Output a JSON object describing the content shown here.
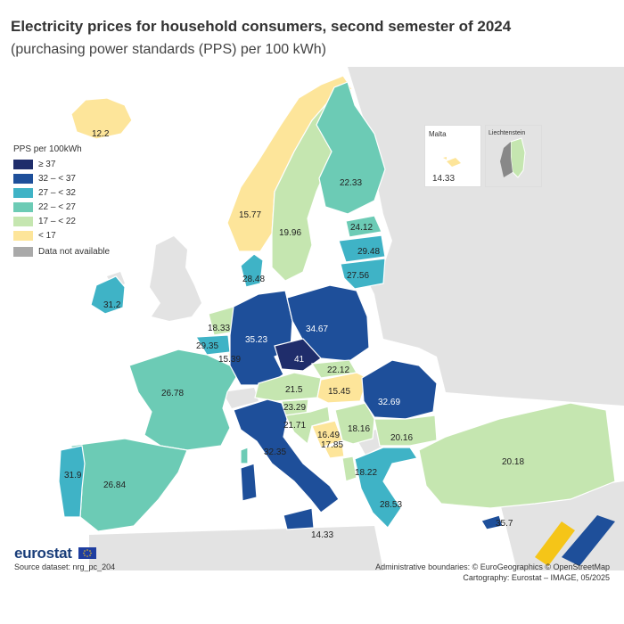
{
  "header": {
    "title": "Electricity prices for household consumers, second semester of 2024",
    "subtitle": "(purchasing power standards (PPS) per 100 kWh)"
  },
  "legend": {
    "title": "PPS per 100kWh",
    "classes": [
      {
        "label": "≥ 37",
        "color": "#1f2d6b"
      },
      {
        "label": "32 – < 37",
        "color": "#1e4f9a"
      },
      {
        "label": "27 – < 32",
        "color": "#3fb3c6"
      },
      {
        "label": "22 – < 27",
        "color": "#6ccbb5"
      },
      {
        "label": "17 – < 22",
        "color": "#c5e6b0"
      },
      {
        "label": "< 17",
        "color": "#fde59a"
      }
    ],
    "na_label": "Data not available",
    "na_color": "#a9a9a9"
  },
  "colors": {
    "non_eu_land": "#e3e3e3",
    "sea": "#ffffff",
    "border": "#ffffff"
  },
  "countries": {
    "iceland": "12.2",
    "norway": "15.77",
    "sweden": "19.96",
    "finland": "22.33",
    "estonia": "24.12",
    "latvia": "29.48",
    "lithuania": "27.56",
    "denmark": "28.48",
    "ireland": "31.2",
    "netherlands": "18.33",
    "belgium": "29.35",
    "luxembourg": "15.39",
    "germany": "35.23",
    "poland": "34.67",
    "czechia": "41",
    "slovakia": "22.12",
    "hungary": "15.45",
    "austria": "21.5",
    "slovenia": "23.29",
    "croatia": "21.71",
    "bosnia": "16.49",
    "serbia": "18.16",
    "montenegro": "17.85",
    "romania": "32.69",
    "bulgaria": "20.16",
    "france": "26.78",
    "spain": "26.84",
    "portugal": "31.9",
    "italy": "32.35",
    "greece": "28.53",
    "albania": "18.22",
    "turkey": "20.18",
    "cyprus": "35.7",
    "malta_map": "14.33"
  },
  "insets": {
    "malta": {
      "name": "Malta",
      "value": "14.33"
    },
    "liechtenstein": {
      "name": "Liechtenstein"
    }
  },
  "footer": {
    "logo": "eurostat",
    "source": "Source dataset: nrg_pc_204",
    "admin": "Administrative boundaries: © EuroGeographics © OpenStreetMap",
    "credit": "Cartography: Eurostat – IMAGE, 05/2025"
  }
}
